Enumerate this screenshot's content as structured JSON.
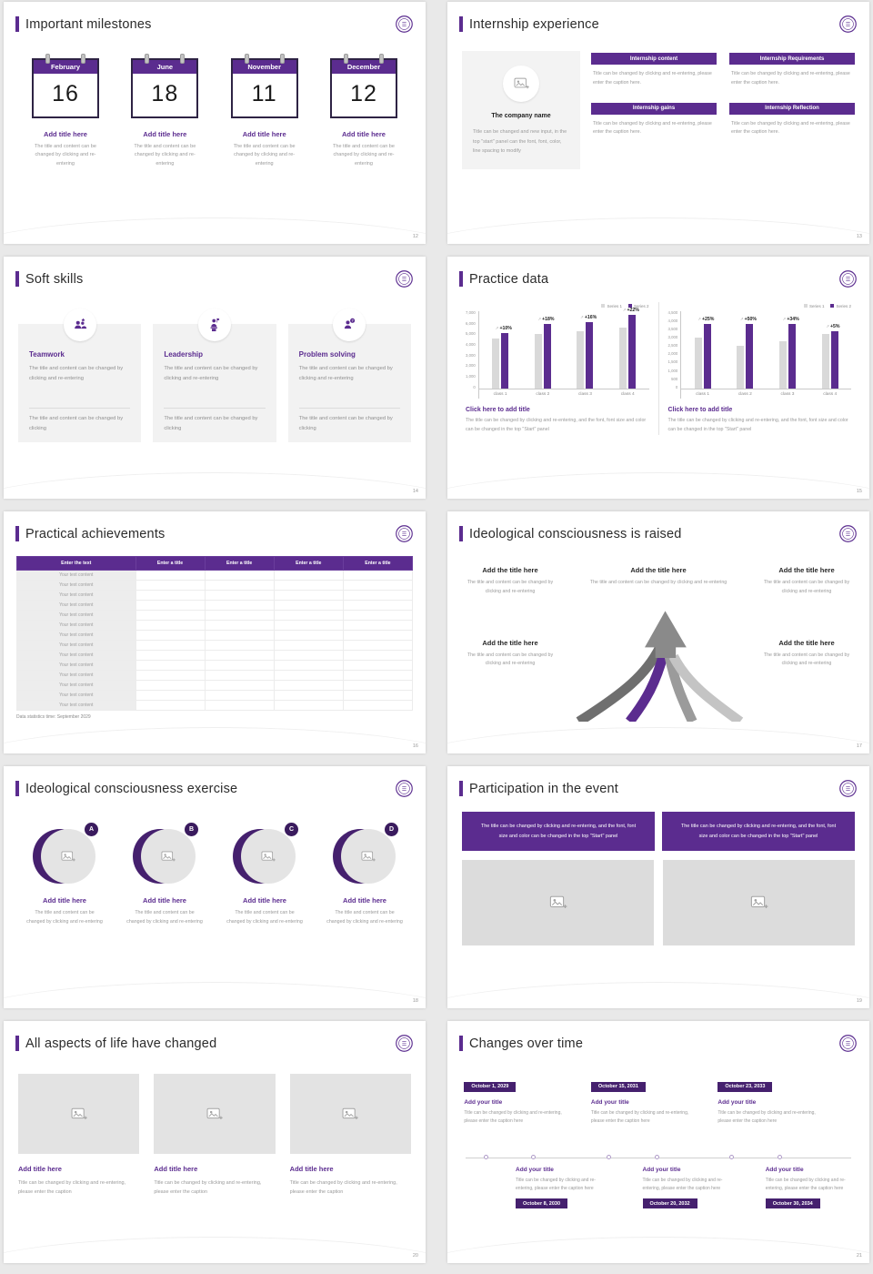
{
  "theme": {
    "purple": "#5b2c8f",
    "purple_dark": "#45206e",
    "gray_bar": "#d9d9d9"
  },
  "slides": {
    "milestones": {
      "title": "Important milestones",
      "page": "12",
      "item_title": "Add title here",
      "caption": "The title and content can be changed by clicking and re-entering",
      "items": [
        {
          "month": "February",
          "day": "16"
        },
        {
          "month": "June",
          "day": "18"
        },
        {
          "month": "November",
          "day": "11"
        },
        {
          "month": "December",
          "day": "12"
        }
      ]
    },
    "internship": {
      "title": "Internship experience",
      "page": "13",
      "company_name": "The company name",
      "company_caption": "Title can be changed and new input, in the top \"start\" panel can the font, font, color, line spacing to modify",
      "item_caption": "Title can be changed by clicking and re-entering, please enter the caption here.",
      "items": [
        {
          "title": "Internship content"
        },
        {
          "title": "Internship Requirements"
        },
        {
          "title": "Internship gains"
        },
        {
          "title": "Internship Reflection"
        }
      ]
    },
    "soft_skills": {
      "title": "Soft skills",
      "page": "14",
      "body": "The title and content can be changed by clicking and re-entering",
      "footer": "The title and content can be changed by clicking",
      "items": [
        {
          "title": "Teamwork"
        },
        {
          "title": "Leadership"
        },
        {
          "title": "Problem solving"
        }
      ]
    },
    "practice": {
      "title": "Practice data",
      "page": "15",
      "cta": "Click here to add title",
      "caption": "The title can be changed by clicking and re-entering, and the font, font size and color can be changed in the top \"Start\" panel"
    },
    "achievements": {
      "title": "Practical achievements",
      "page": "16",
      "footnote": "Data statistics time: September 2029",
      "table": {
        "first_header": "Enter the text",
        "other_header": "Enter a title",
        "columns": 4,
        "rows": 14,
        "row_label": "Your text content"
      }
    },
    "ideology_raised": {
      "title": "Ideological consciousness is raised",
      "page": "17",
      "item_title": "Add the title here",
      "item_caption": "The title and content can be changed by clicking and re-entering"
    },
    "ideology_exercise": {
      "title": "Ideological consciousness exercise",
      "page": "18",
      "item_title": "Add title here",
      "item_caption": "The title and content can be changed by clicking and re-entering",
      "letters": [
        "A",
        "B",
        "C",
        "D"
      ]
    },
    "participation": {
      "title": "Participation in the event",
      "page": "19",
      "banner_text": "The title can be changed by clicking and re-entering, and the font, font size and color can be changed in the top \"Start\" panel"
    },
    "life_changed": {
      "title": "All aspects of life have changed",
      "page": "20",
      "item_title": "Add title here",
      "item_caption": "Title can be changed by clicking and re-entering, please enter the caption"
    },
    "timeline": {
      "title": "Changes over time",
      "page": "21",
      "item_title": "Add your title",
      "item_caption": "Title can be changed by clicking and re-entering, please enter the caption here",
      "top_dates": [
        "October 1, 2029",
        "October 15, 2031",
        "October 23, 2033"
      ],
      "bottom_dates": [
        "October 8, 2030",
        "October 20, 2032",
        "October 30, 2034"
      ]
    }
  },
  "chart_data": [
    {
      "type": "bar",
      "title": "Click here to add title",
      "categories": [
        "class 1",
        "class 2",
        "class 3",
        "class 4"
      ],
      "series": [
        {
          "name": "Series 1",
          "color": "#d9d9d9",
          "values": [
            4600,
            5000,
            5200,
            5500
          ]
        },
        {
          "name": "Series 2",
          "color": "#5b2c8f",
          "values": [
            5060,
            5900,
            6030,
            6710
          ]
        }
      ],
      "growth_labels": [
        "+10%",
        "+18%",
        "+16%",
        "+22%"
      ],
      "ylim": [
        0,
        7000
      ],
      "ytick_step": 1000,
      "legend_position": "top-right",
      "grid": false
    },
    {
      "type": "bar",
      "title": "Click here to add title",
      "categories": [
        "class 1",
        "class 2",
        "class 3",
        "class 4"
      ],
      "series": [
        {
          "name": "Series 1",
          "color": "#d9d9d9",
          "values": [
            3000,
            2500,
            2800,
            3200
          ]
        },
        {
          "name": "Series 2",
          "color": "#5b2c8f",
          "values": [
            3750,
            3750,
            3750,
            3360
          ]
        }
      ],
      "growth_labels": [
        "+25%",
        "+50%",
        "+34%",
        "+5%"
      ],
      "ylim": [
        0,
        4500
      ],
      "ytick_step": 500,
      "legend_position": "top-right",
      "grid": false
    }
  ]
}
